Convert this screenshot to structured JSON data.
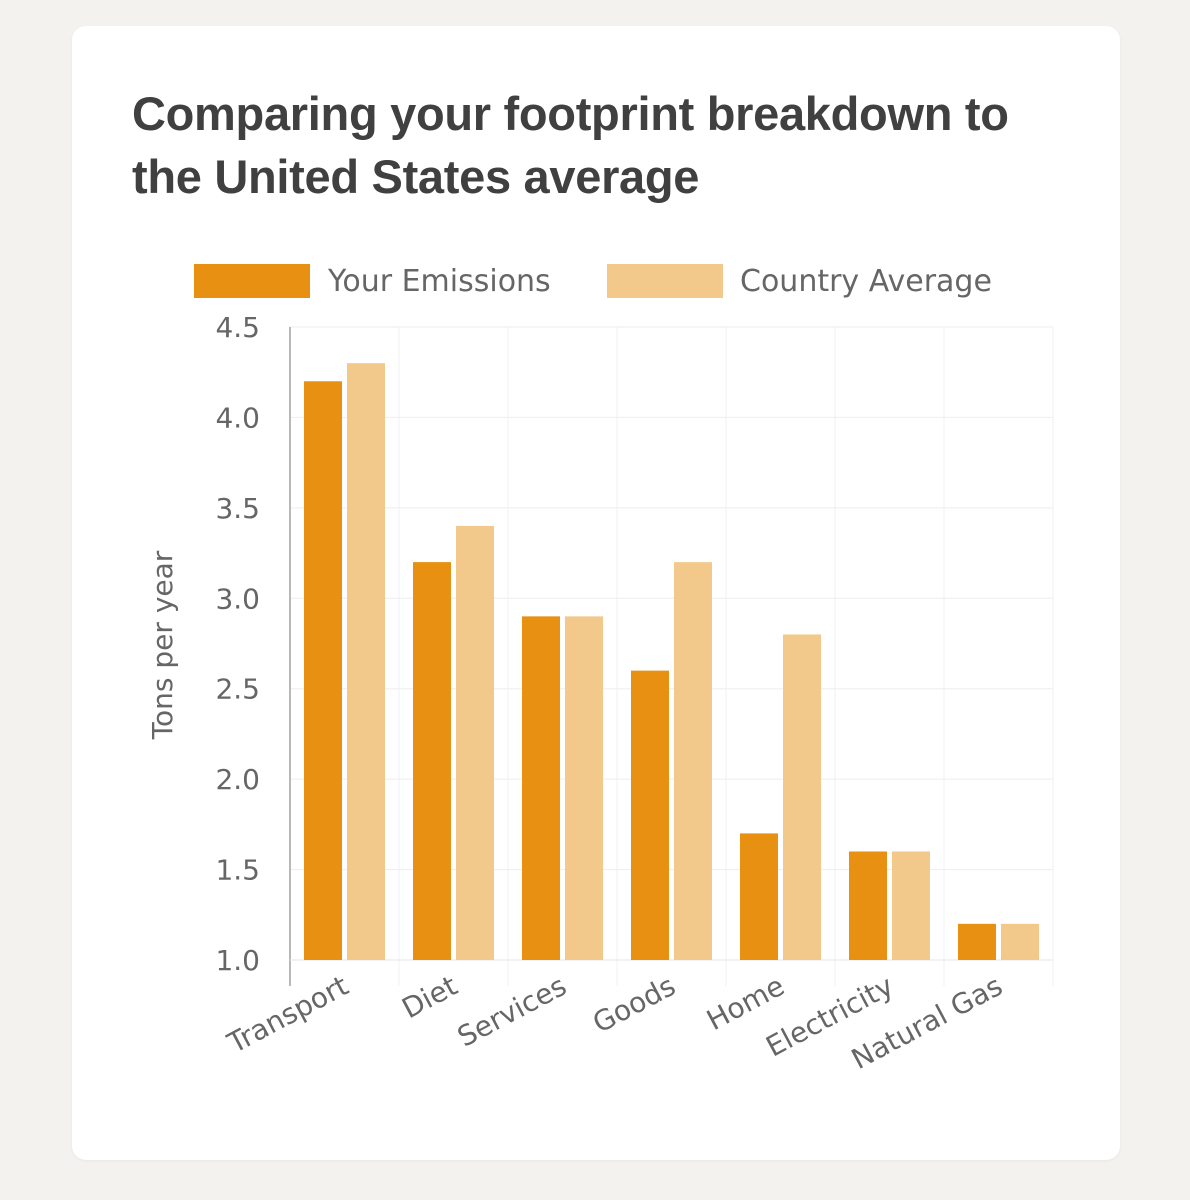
{
  "chart_data": {
    "type": "bar",
    "title": "Comparing your footprint breakdown to the United States average",
    "ylabel": "Tons per year",
    "xlabel": "",
    "categories": [
      "Transport",
      "Diet",
      "Services",
      "Goods",
      "Home",
      "Electricity",
      "Natural Gas"
    ],
    "series": [
      {
        "name": "Your Emissions",
        "color": "#e89012",
        "values": [
          4.2,
          3.2,
          2.9,
          2.6,
          1.7,
          1.6,
          1.2
        ]
      },
      {
        "name": "Country Average",
        "color": "#f2c98a",
        "values": [
          4.3,
          3.4,
          2.9,
          3.2,
          2.8,
          1.6,
          1.2
        ]
      }
    ],
    "ylim": [
      1.0,
      4.5
    ],
    "yticks": [
      "1.0",
      "1.5",
      "2.0",
      "2.5",
      "3.0",
      "3.5",
      "4.0",
      "4.5"
    ],
    "grid": true,
    "legend_position": "top"
  }
}
